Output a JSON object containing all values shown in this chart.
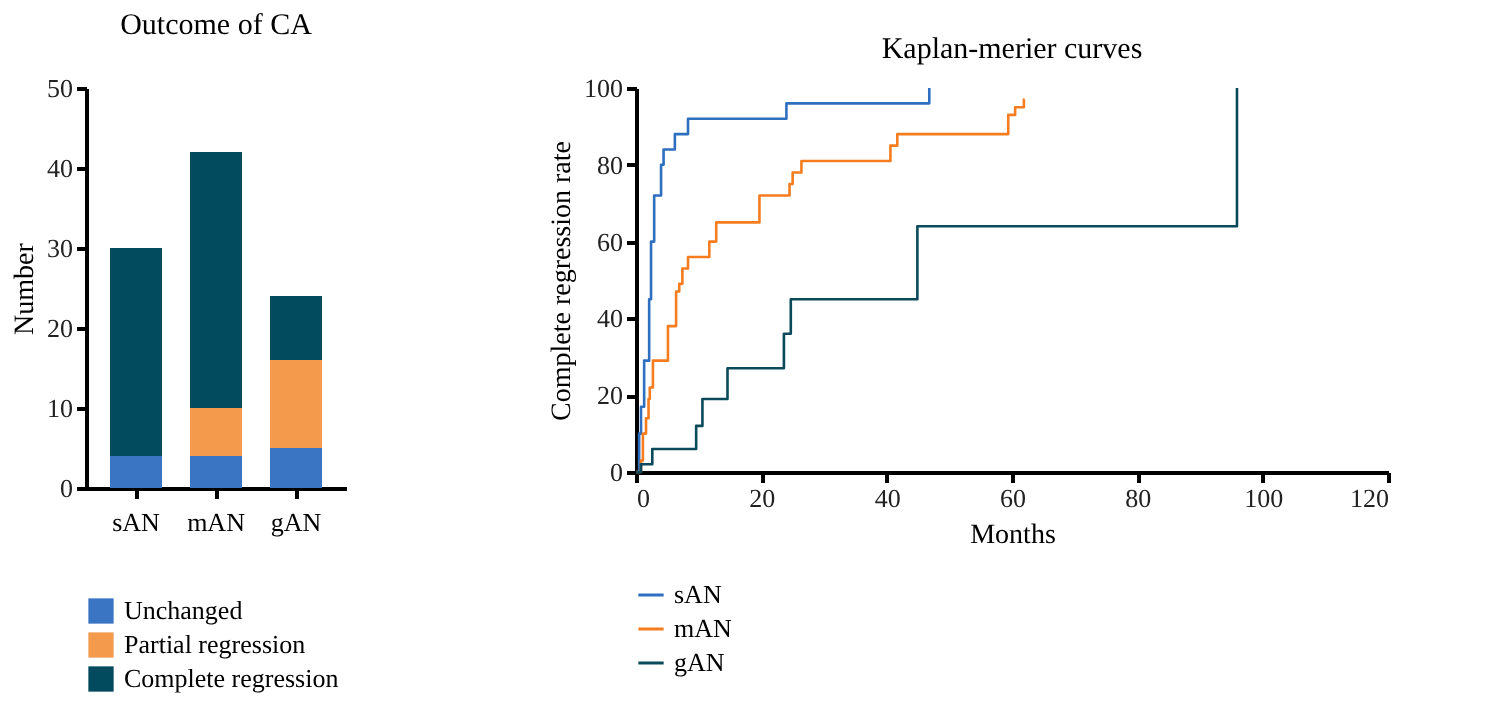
{
  "chart_data": [
    {
      "type": "bar",
      "title": "Outcome of CA",
      "ylabel": "Number",
      "categories": [
        "sAN",
        "mAN",
        "gAN"
      ],
      "stacked": true,
      "ylim": [
        0,
        50
      ],
      "yticks": [
        0,
        10,
        20,
        30,
        40,
        50
      ],
      "legend": "bottom",
      "series": [
        {
          "name": "Unchanged",
          "color": "#3a75c4",
          "values": [
            4,
            4,
            5
          ]
        },
        {
          "name": "Partial regression",
          "color": "#f39a4c",
          "values": [
            0,
            6,
            11
          ]
        },
        {
          "name": "Complete regression",
          "color": "#024b5e",
          "values": [
            26,
            32,
            8
          ]
        }
      ]
    },
    {
      "type": "step",
      "title": "Kaplan-merier curves",
      "xlabel": "Months",
      "ylabel": "Complete regression rate",
      "xlim": [
        0,
        120
      ],
      "xticks": [
        0,
        20,
        40,
        60,
        80,
        100,
        120
      ],
      "ylim": [
        0,
        100
      ],
      "yticks": [
        0,
        20,
        40,
        60,
        80,
        100
      ],
      "legend": "bottom left",
      "series": [
        {
          "name": "sAN",
          "color": "#2e6fc0",
          "x": [
            0,
            0.5,
            0.8,
            1.3,
            2.1,
            2.4,
            2.9,
            4,
            4.4,
            6.2,
            8.3,
            24,
            46.8
          ],
          "values": [
            0,
            10,
            17,
            29,
            45,
            60,
            72,
            80,
            84,
            88,
            92,
            96,
            100
          ]
        },
        {
          "name": "mAN",
          "color": "#f57c1f",
          "x": [
            0,
            0.8,
            1.1,
            1.6,
            2.0,
            2.2,
            2.7,
            5.1,
            6.4,
            6.9,
            7.4,
            8.3,
            11.7,
            12.8,
            19.7,
            24.5,
            25.0,
            26.4,
            40.6,
            41.7,
            59.4,
            60.5,
            61.9,
            62
          ],
          "values": [
            0,
            3,
            10,
            14,
            19,
            22,
            29,
            38,
            47,
            49,
            53,
            56,
            60,
            65,
            72,
            75,
            78,
            81,
            85,
            88,
            93,
            95,
            97,
            97
          ]
        },
        {
          "name": "gAN",
          "color": "#0b4a5a",
          "x": [
            0,
            0.8,
            2.6,
            9.6,
            10.6,
            14.6,
            23.6,
            24.7,
            44.9,
            95.9
          ],
          "values": [
            0,
            2,
            6,
            12,
            19,
            27,
            36,
            45,
            64,
            100
          ]
        }
      ]
    }
  ]
}
